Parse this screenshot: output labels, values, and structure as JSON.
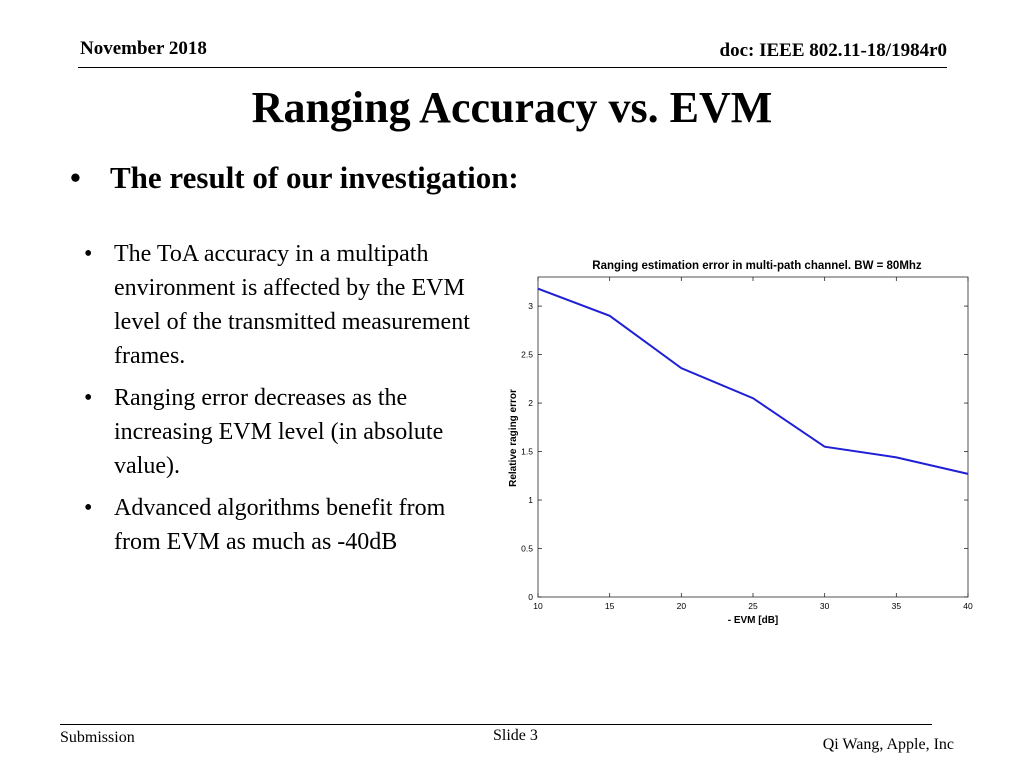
{
  "header": {
    "date": "November 2018",
    "doc": "doc:  IEEE 802.11-18/1984r0"
  },
  "title": "Ranging Accuracy vs. EVM",
  "lead": {
    "bullet": "•",
    "text": "The result of our investigation:"
  },
  "bullets": [
    {
      "glyph": "•",
      "text": "The ToA accuracy in a multipath environment is affected by the EVM level of the transmitted measurement frames."
    },
    {
      "glyph": "•",
      "text": "Ranging error decreases as the increasing EVM level (in absolute value)."
    },
    {
      "glyph": "•",
      "text": "Advanced algorithms benefit from from EVM as much as -40dB"
    }
  ],
  "chart_data": {
    "type": "line",
    "title": "Ranging estimation error in multi-path channel. BW = 80Mhz",
    "xlabel": "- EVM [dB]",
    "ylabel": "Relative raging error",
    "xlim": [
      10,
      40
    ],
    "ylim": [
      0,
      3.3
    ],
    "xticks": [
      10,
      15,
      20,
      25,
      30,
      35,
      40
    ],
    "yticks": [
      0,
      0.5,
      1,
      1.5,
      2,
      2.5,
      3
    ],
    "ytick_labels": [
      "0",
      "0.5",
      "1",
      "1.5",
      "2",
      "2.5",
      "3"
    ],
    "grid": false,
    "series": [
      {
        "name": "ranging error",
        "color": "#1f1fd6",
        "x": [
          10,
          15,
          20,
          25,
          30,
          35,
          40
        ],
        "values": [
          3.18,
          2.9,
          2.36,
          2.05,
          1.55,
          1.44,
          1.27
        ]
      }
    ]
  },
  "footer": {
    "left": "Submission",
    "mid": "Slide 3",
    "right": "Qi Wang, Apple, Inc"
  }
}
